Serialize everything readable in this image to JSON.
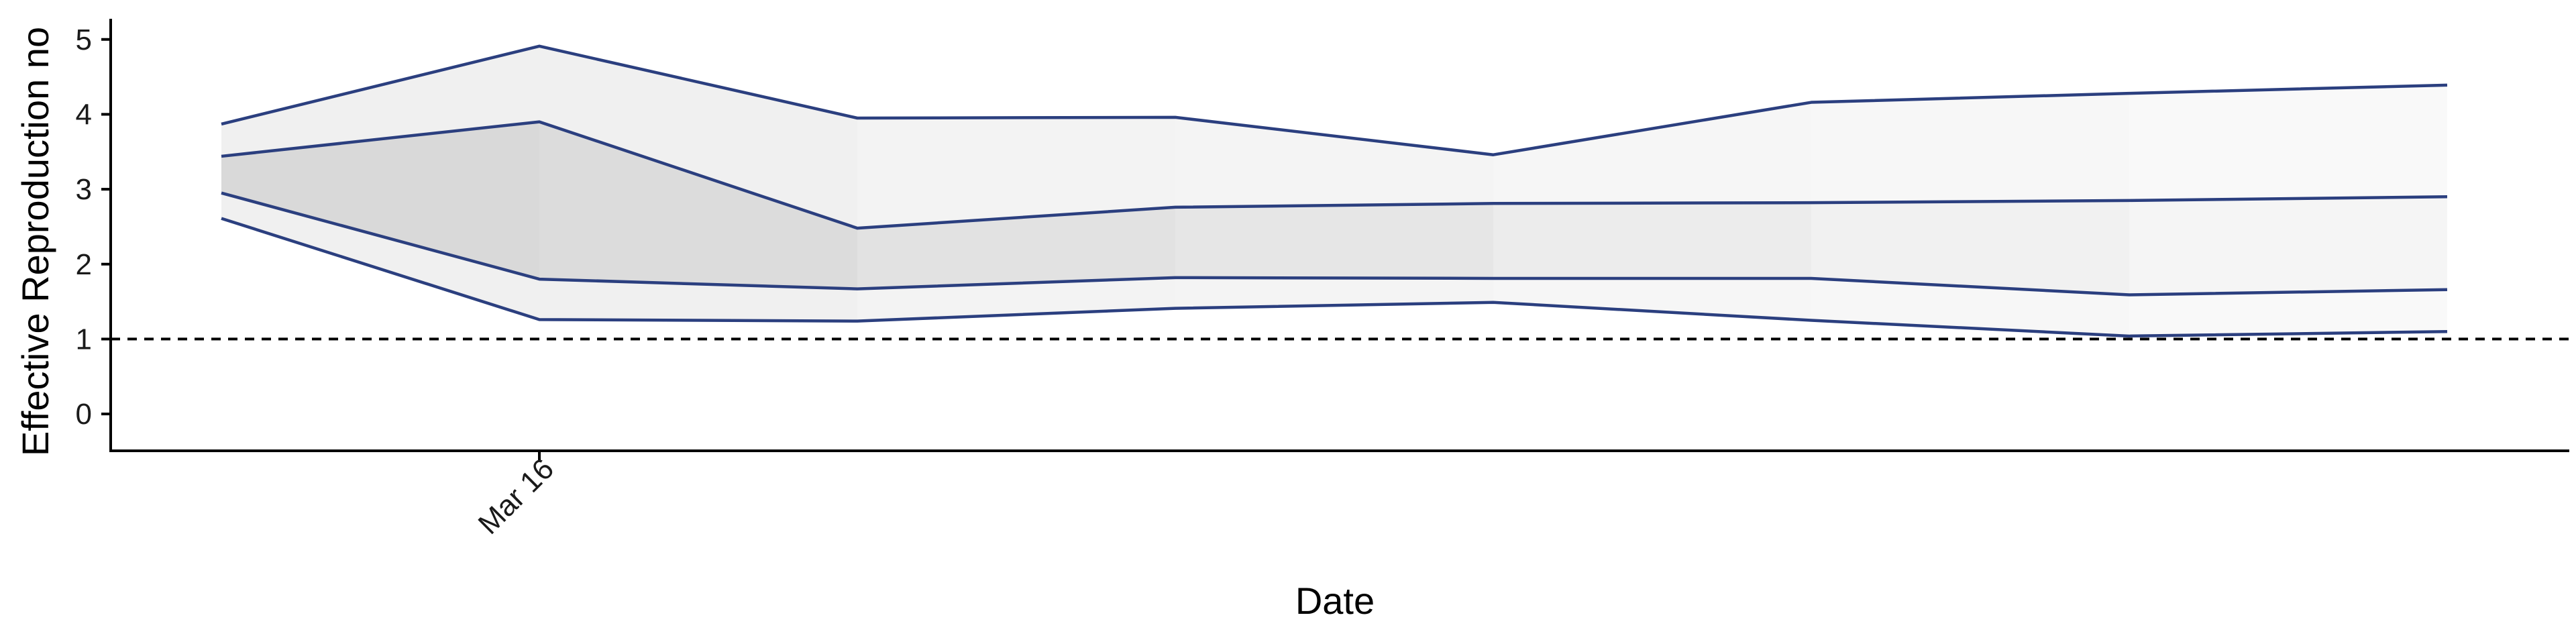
{
  "chart_data": {
    "type": "area",
    "xlabel": "Date",
    "ylabel": "Effective Reproduction no",
    "x_tick_labels": [
      {
        "x": 1,
        "label": "Mar 16"
      }
    ],
    "x": [
      0,
      1,
      2,
      3,
      4,
      5,
      6,
      7
    ],
    "ylim": [
      -0.25,
      5.15
    ],
    "yticks": [
      0,
      1,
      2,
      3,
      4,
      5
    ],
    "grid": false,
    "reference_line": {
      "y": 1,
      "style": "dashed"
    },
    "series": [
      {
        "role": "upper_90",
        "values": [
          3.87,
          4.91,
          3.95,
          3.96,
          3.46,
          4.16,
          4.28,
          4.39
        ]
      },
      {
        "role": "upper_50",
        "values": [
          3.44,
          3.9,
          2.48,
          2.76,
          2.81,
          2.82,
          2.85,
          2.9
        ]
      },
      {
        "role": "lower_50",
        "values": [
          2.95,
          1.8,
          1.67,
          1.82,
          1.81,
          1.81,
          1.59,
          1.66
        ]
      },
      {
        "role": "lower_90",
        "values": [
          2.61,
          1.26,
          1.24,
          1.41,
          1.49,
          1.25,
          1.04,
          1.1
        ]
      }
    ],
    "bands": [
      {
        "from": "lower_90",
        "to": "upper_90",
        "fills": [
          "#f0f0f0",
          "#f0f0f0",
          "#f3f3f3",
          "#f4f4f4",
          "#f6f6f6",
          "#f7f7f7",
          "#f9f9f9"
        ]
      },
      {
        "from": "lower_50",
        "to": "upper_50",
        "fills": [
          "#d9d9d9",
          "#dcdcdc",
          "#e2e2e2",
          "#e6e6e6",
          "#ececec",
          "#f1f1f1",
          "#f5f5f5"
        ]
      }
    ],
    "colors": {
      "line": "#2b3f7f",
      "axis": "#000000"
    }
  }
}
